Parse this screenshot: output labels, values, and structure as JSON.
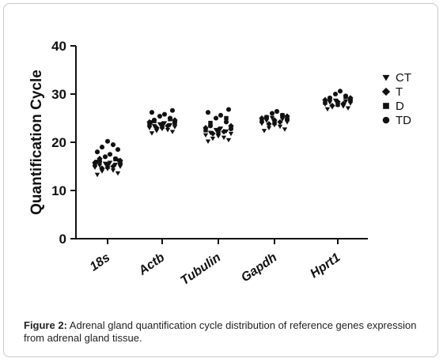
{
  "chart_data": {
    "type": "scatter",
    "ylabel": "Quantification Cycle",
    "ylim": [
      0,
      40
    ],
    "yticks": [
      0,
      10,
      20,
      30,
      40
    ],
    "categories": [
      "18s",
      "Actb",
      "Tubulin",
      "Gapdh",
      "Hprt1"
    ],
    "legend": {
      "placement": "right",
      "entries": [
        {
          "name": "CT",
          "marker": "triangle-down"
        },
        {
          "name": "T",
          "marker": "diamond"
        },
        {
          "name": "D",
          "marker": "square"
        },
        {
          "name": "TD",
          "marker": "circle"
        }
      ]
    },
    "series": [
      {
        "name": "CT",
        "marker": "triangle-down",
        "values": {
          "18s": [
            13.3,
            13.6,
            14.0,
            14.2,
            14.5,
            14.8,
            15.0,
            15.2,
            15.4,
            15.6,
            15.8,
            16.0,
            16.3
          ],
          "Actb": [
            21.9,
            22.2,
            22.4,
            22.6,
            22.8,
            23.0,
            23.2,
            23.4,
            23.6,
            23.8,
            24.0,
            24.2
          ],
          "Tubulin": [
            20.2,
            20.5,
            20.8,
            21.0,
            21.3,
            21.5,
            21.8,
            22.0,
            22.3,
            22.6,
            22.9
          ],
          "Gapdh": [
            22.4,
            22.7,
            23.0,
            23.3,
            23.6,
            23.9,
            24.2,
            24.5,
            24.8,
            25.1
          ],
          "Hprt1": [
            26.9,
            27.1,
            27.3,
            27.5,
            27.7,
            27.9,
            28.1,
            28.3,
            28.5,
            28.7
          ]
        }
      },
      {
        "name": "T",
        "marker": "diamond",
        "values": {
          "18s": [
            14.6,
            15.0,
            15.4,
            15.8,
            16.2,
            16.6
          ],
          "Actb": [
            23.0,
            23.4,
            23.8,
            24.2,
            24.6
          ],
          "Tubulin": [
            21.8,
            22.2,
            22.6,
            23.0,
            23.4
          ],
          "Gapdh": [
            23.8,
            24.2,
            24.6,
            25.0,
            25.4
          ],
          "Hprt1": [
            27.6,
            28.0,
            28.4,
            28.8,
            29.2
          ]
        }
      },
      {
        "name": "D",
        "marker": "square",
        "values": {
          "18s": [
            14.9,
            15.3,
            15.7,
            16.1,
            16.5
          ],
          "Actb": [
            23.2,
            23.6,
            24.0,
            24.4,
            24.8
          ],
          "Tubulin": [
            22.0,
            22.5,
            23.0,
            24.0,
            25.0
          ],
          "Gapdh": [
            24.0,
            24.4,
            24.8,
            25.2,
            25.6
          ],
          "Hprt1": [
            27.8,
            28.2,
            28.6,
            29.0,
            29.4
          ]
        }
      },
      {
        "name": "TD",
        "marker": "circle",
        "values": {
          "18s": [
            15.5,
            16.0,
            16.6,
            17.0,
            17.5,
            18.0,
            18.5,
            19.0,
            19.5,
            20.2
          ],
          "Actb": [
            24.2,
            24.6,
            25.0,
            25.4,
            25.8,
            26.2,
            26.6
          ],
          "Tubulin": [
            22.8,
            23.4,
            24.2,
            25.0,
            25.6,
            26.2,
            26.8
          ],
          "Gapdh": [
            24.8,
            25.2,
            25.6,
            26.0,
            26.4
          ],
          "Hprt1": [
            28.8,
            29.2,
            29.6,
            30.0,
            30.6
          ]
        }
      }
    ]
  },
  "caption": {
    "label": "Figure 2:",
    "text": " Adrenal gland quantification cycle distribution of reference genes expression from adrenal gland tissue."
  }
}
